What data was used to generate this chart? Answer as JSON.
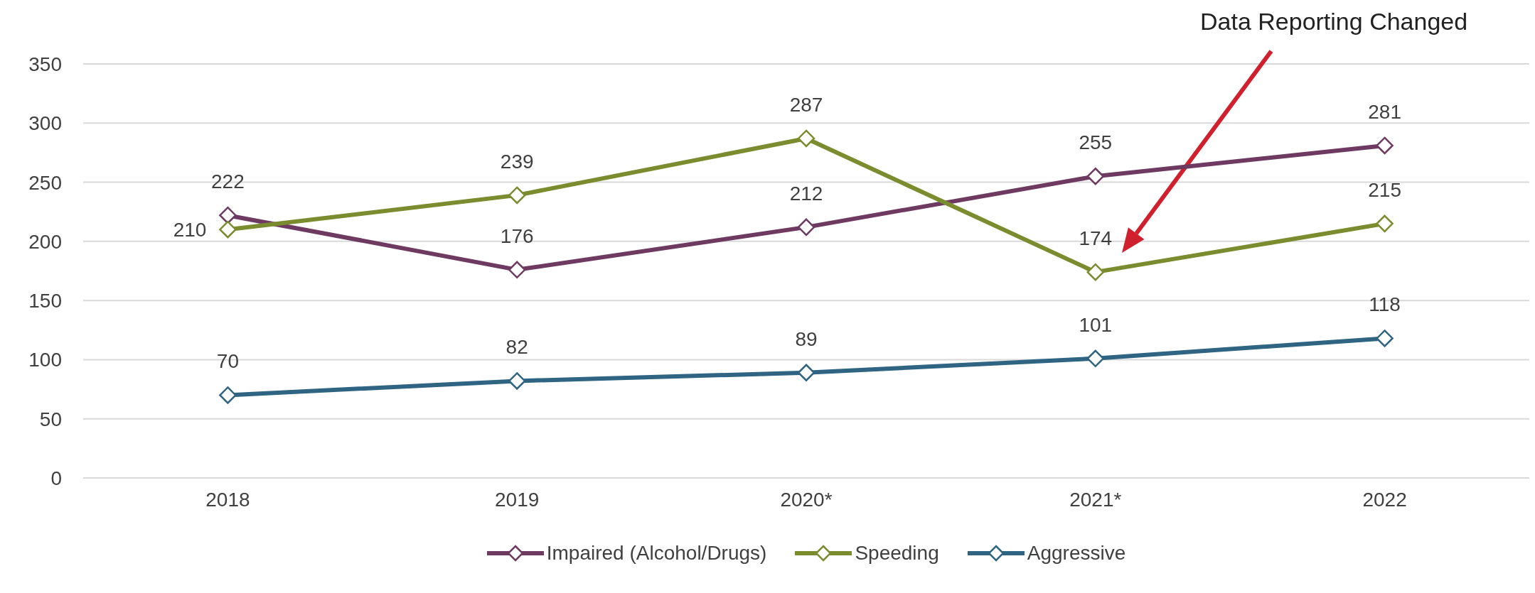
{
  "chart_data": {
    "type": "line",
    "categories": [
      "2018",
      "2019",
      "2020*",
      "2021*",
      "2022"
    ],
    "series": [
      {
        "name": "Impaired (Alcohol/Drugs)",
        "color": "#6e3a62",
        "values": [
          222,
          176,
          212,
          255,
          281
        ]
      },
      {
        "name": "Speeding",
        "color": "#7b8c2f",
        "values": [
          210,
          239,
          287,
          174,
          215
        ]
      },
      {
        "name": "Aggressive",
        "color": "#2f6482",
        "values": [
          70,
          82,
          89,
          101,
          118
        ]
      }
    ],
    "ylim": [
      0,
      350
    ],
    "yticks": [
      0,
      50,
      100,
      150,
      200,
      250,
      300,
      350
    ],
    "grid": "y",
    "legend": "bottom",
    "marker": "diamond",
    "line_style": "solid",
    "data_labels": true,
    "annotations": [
      "Data Reporting Changed"
    ]
  }
}
